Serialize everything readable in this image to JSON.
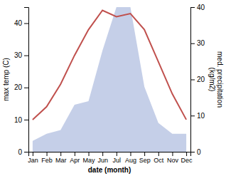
{
  "chart_data": {
    "type": "line",
    "categories": [
      "Jan",
      "Feb",
      "Mar",
      "Apr",
      "May",
      "Jun",
      "Jul",
      "Aug",
      "Sep",
      "Oct",
      "Nov",
      "Dec"
    ],
    "xlabel": "date (month)",
    "ylabel": "max temp (C)",
    "y2label": "med. precipitation\n(kg/m2)",
    "ylim": [
      0,
      45
    ],
    "yticks": [
      0,
      10,
      20,
      30,
      40
    ],
    "y2lim": [
      0,
      40
    ],
    "y2ticks": [
      0,
      10,
      20,
      30,
      40
    ],
    "series": [
      {
        "type": "area",
        "axis": "y2",
        "color": "#c5cfe8",
        "values": [
          3,
          5,
          6,
          13,
          14,
          28,
          40,
          40,
          18,
          8,
          5,
          5
        ]
      },
      {
        "type": "line",
        "color": "#c0504d",
        "values": [
          10,
          14,
          21,
          30,
          38,
          44,
          42,
          43,
          38,
          28,
          18,
          10
        ]
      }
    ]
  }
}
